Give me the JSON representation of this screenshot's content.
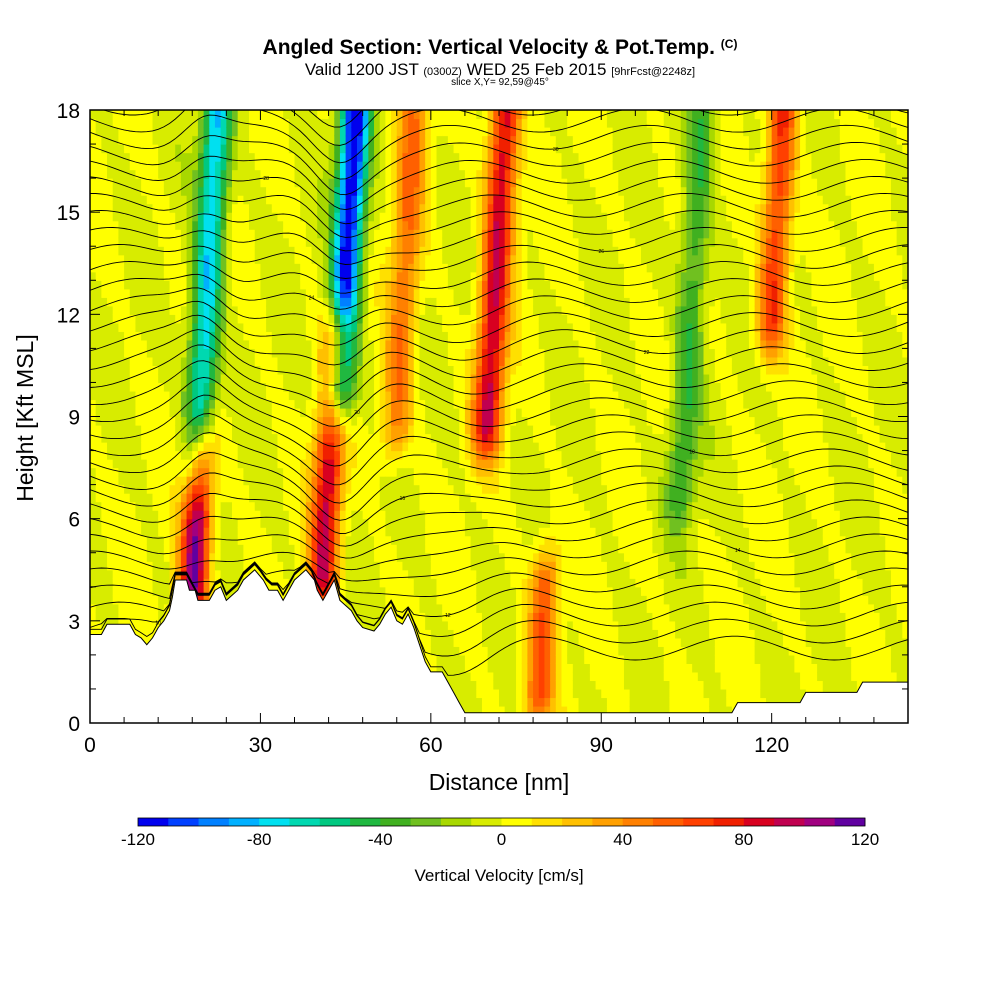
{
  "header": {
    "title_main": "Angled Section: Vertical Velocity & Pot.Temp.",
    "title_unit": "(C)",
    "subtitle_a": "Valid 1200 JST",
    "subtitle_b": "(0300Z)",
    "subtitle_c": "WED 25 Feb 2015",
    "subtitle_d": "[9hrFcst@2248z]",
    "subtitle_slice": "slice X,Y= 92,59@45°"
  },
  "chart_data": {
    "type": "heatmap",
    "title": "Angled Section: Vertical Velocity & Pot.Temp. (C)",
    "xlabel": "Distance [nm]",
    "ylabel": "Height [Kft MSL]",
    "xlim": [
      0,
      144
    ],
    "ylim": [
      0,
      18
    ],
    "x_ticks": [
      "0",
      "30",
      "60",
      "90",
      "120"
    ],
    "y_ticks": [
      "0",
      "3",
      "6",
      "9",
      "12",
      "15",
      "18"
    ],
    "colorbar": {
      "label": "Vertical Velocity [cm/s]",
      "range": [
        -120,
        120
      ],
      "tick_labels": [
        "-120",
        "-80",
        "-40",
        "0",
        "40",
        "80",
        "120"
      ],
      "colors": [
        "#0000ee",
        "#0040ff",
        "#0080ff",
        "#00b0ff",
        "#00e0f0",
        "#00d8b0",
        "#00c880",
        "#20b840",
        "#40b020",
        "#70c020",
        "#a8d800",
        "#d8ec00",
        "#ffff00",
        "#ffe000",
        "#ffc000",
        "#ffa000",
        "#ff8000",
        "#ff6000",
        "#ff4000",
        "#f02000",
        "#d80020",
        "#c00050",
        "#a00080",
        "#6000a0"
      ]
    },
    "vertical_velocity_features": [
      {
        "x_nm": 18,
        "w_cms": 110,
        "z_range_kft": [
          3.7,
          7.5
        ]
      },
      {
        "x_nm": 19,
        "w_cms": -80,
        "z_range_kft": [
          8,
          18
        ]
      },
      {
        "x_nm": 41,
        "w_cms": 90,
        "z_range_kft": [
          4.5,
          11
        ]
      },
      {
        "x_nm": 44,
        "w_cms": -120,
        "z_range_kft": [
          10,
          18
        ]
      },
      {
        "x_nm": 54,
        "w_cms": 50,
        "z_range_kft": [
          9,
          18
        ]
      },
      {
        "x_nm": 70,
        "w_cms": 90,
        "z_range_kft": [
          9,
          18
        ]
      },
      {
        "x_nm": 79,
        "w_cms": 60,
        "z_range_kft": [
          1,
          4
        ]
      },
      {
        "x_nm": 104,
        "w_cms": -40,
        "z_range_kft": [
          7,
          18
        ]
      },
      {
        "x_nm": 120,
        "w_cms": 70,
        "z_range_kft": [
          12,
          18
        ]
      }
    ],
    "terrain_kft": [
      [
        0,
        2.6
      ],
      [
        2,
        2.6
      ],
      [
        3,
        2.9
      ],
      [
        7,
        2.9
      ],
      [
        8,
        2.6
      ],
      [
        9,
        2.5
      ],
      [
        10,
        2.3
      ],
      [
        11,
        2.5
      ],
      [
        12,
        2.8
      ],
      [
        13,
        3.0
      ],
      [
        14,
        3.3
      ],
      [
        14.5,
        3.7
      ],
      [
        15,
        4.2
      ],
      [
        17,
        4.2
      ],
      [
        17.5,
        3.9
      ],
      [
        18.5,
        3.9
      ],
      [
        19,
        3.6
      ],
      [
        21,
        3.6
      ],
      [
        22,
        3.9
      ],
      [
        23,
        4.0
      ],
      [
        24,
        3.6
      ],
      [
        26,
        3.9
      ],
      [
        27,
        4.2
      ],
      [
        29,
        4.5
      ],
      [
        30.5,
        4.2
      ],
      [
        31.5,
        3.9
      ],
      [
        33,
        3.9
      ],
      [
        34,
        3.6
      ],
      [
        35,
        3.9
      ],
      [
        36,
        4.2
      ],
      [
        38,
        4.5
      ],
      [
        39.5,
        4.2
      ],
      [
        40,
        3.9
      ],
      [
        41,
        3.6
      ],
      [
        42,
        3.9
      ],
      [
        43,
        4.2
      ],
      [
        43.5,
        3.9
      ],
      [
        44,
        3.6
      ],
      [
        46,
        3.3
      ],
      [
        47,
        3.0
      ],
      [
        48,
        2.8
      ],
      [
        50,
        2.7
      ],
      [
        51,
        2.9
      ],
      [
        52,
        3.2
      ],
      [
        53,
        3.4
      ],
      [
        54,
        3.0
      ],
      [
        55,
        2.9
      ],
      [
        56,
        3.2
      ],
      [
        57,
        2.8
      ],
      [
        58,
        2.3
      ],
      [
        59,
        1.8
      ],
      [
        60,
        1.5
      ],
      [
        62,
        1.5
      ],
      [
        63,
        1.2
      ],
      [
        64,
        0.9
      ],
      [
        65,
        0.6
      ],
      [
        66,
        0.3
      ],
      [
        113,
        0.3
      ],
      [
        114,
        0.6
      ],
      [
        125,
        0.6
      ],
      [
        126,
        0.9
      ],
      [
        135,
        0.9
      ],
      [
        136,
        1.2
      ],
      [
        144,
        1.2
      ]
    ],
    "isentropes": {
      "interval_deg_c": 1,
      "count": 34,
      "tick_labels": [
        "10",
        "12",
        "14",
        "16",
        "18",
        "20",
        "22",
        "24",
        "26",
        "28",
        "30"
      ]
    }
  }
}
